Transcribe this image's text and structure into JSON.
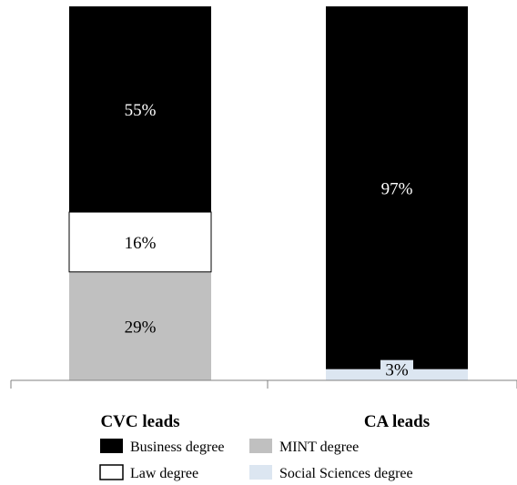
{
  "chart_data": {
    "type": "bar",
    "stacked": true,
    "categories": [
      "CVC leads",
      "CA leads"
    ],
    "series": [
      {
        "name": "MINT degree",
        "values": [
          29,
          0
        ],
        "color": "#c0c0c0",
        "label_color": "#000000"
      },
      {
        "name": "Law degree",
        "values": [
          16,
          0
        ],
        "color": "#ffffff",
        "label_color": "#000000"
      },
      {
        "name": "Social Sciences degree",
        "values": [
          0,
          3
        ],
        "color": "#dce6f1",
        "label_color": "#000000"
      },
      {
        "name": "Business degree",
        "values": [
          55,
          97
        ],
        "color": "#000000",
        "label_color": "#ffffff"
      }
    ],
    "value_labels": [
      [
        "29%",
        ""
      ],
      [
        "16%",
        ""
      ],
      [
        "",
        "3%"
      ],
      [
        "55%",
        "97%"
      ]
    ],
    "ylim": [
      0,
      100
    ],
    "grid": false,
    "legend": {
      "position": "bottom",
      "order": [
        "Business degree",
        "MINT degree",
        "Law degree",
        "Social Sciences degree"
      ]
    }
  }
}
